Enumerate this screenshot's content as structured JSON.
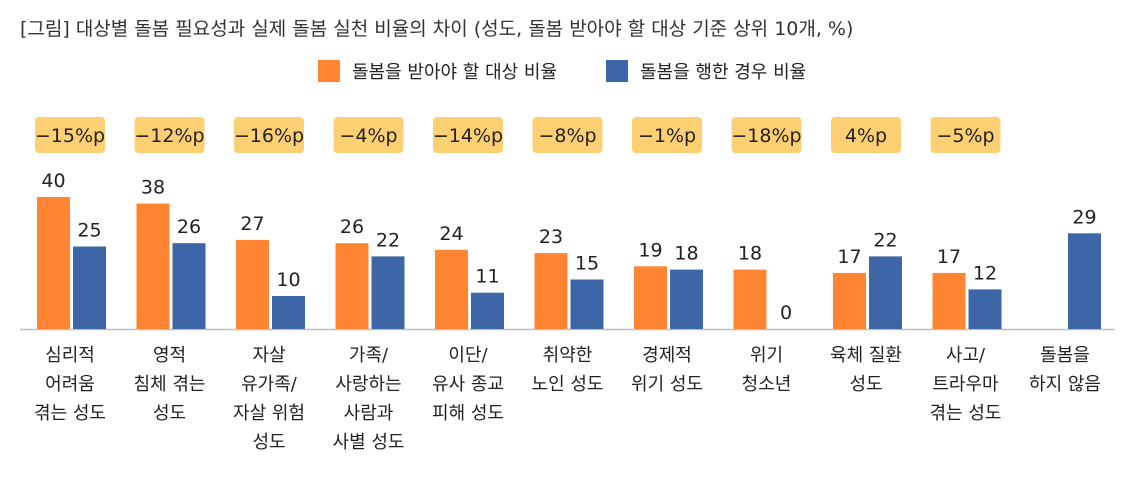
{
  "title": "[그림] 대상별 돌봄 필요성과 실제 돌봄 실천 비율의 차이 (성도, 돌봄 받아야 할 대상 기준 상위 10개, %)",
  "colors": {
    "need": "#FF8533",
    "practice": "#3D66A6",
    "diff_box": "#FFD073",
    "axis": "#bfbfbf"
  },
  "chart_data": {
    "type": "bar",
    "categories": [
      [
        "심리적",
        "어려움",
        "겪는 성도"
      ],
      [
        "영적",
        "침체 겪는",
        "성도"
      ],
      [
        "자살",
        "유가족/",
        "자살 위험",
        "성도"
      ],
      [
        "가족/",
        "사랑하는",
        "사람과",
        "사별 성도"
      ],
      [
        "이단/",
        "유사 종교",
        "피해 성도"
      ],
      [
        "취약한",
        "노인 성도"
      ],
      [
        "경제적",
        "위기 성도"
      ],
      [
        "위기",
        "청소년"
      ],
      [
        "육체 질환",
        "성도"
      ],
      [
        "사고/",
        "트라우마",
        "겪는 성도"
      ],
      [
        "돌봄을",
        "하지 않음"
      ]
    ],
    "series": [
      {
        "name": "돌봄을 받아야 할 대상 비율",
        "values": [
          40,
          38,
          27,
          26,
          24,
          23,
          19,
          18,
          17,
          17,
          null
        ]
      },
      {
        "name": "돌봄을 행한 경우 비율",
        "values": [
          25,
          26,
          10,
          22,
          11,
          15,
          18,
          0,
          22,
          12,
          29
        ]
      }
    ],
    "differences": [
      "−15%p",
      "−12%p",
      "−16%p",
      "−4%p",
      "−14%p",
      "−8%p",
      "−1%p",
      "−18%p",
      "4%p",
      "−5%p",
      null
    ],
    "ylim": [
      0,
      40
    ],
    "legend_position": "top-center",
    "grid": false
  }
}
